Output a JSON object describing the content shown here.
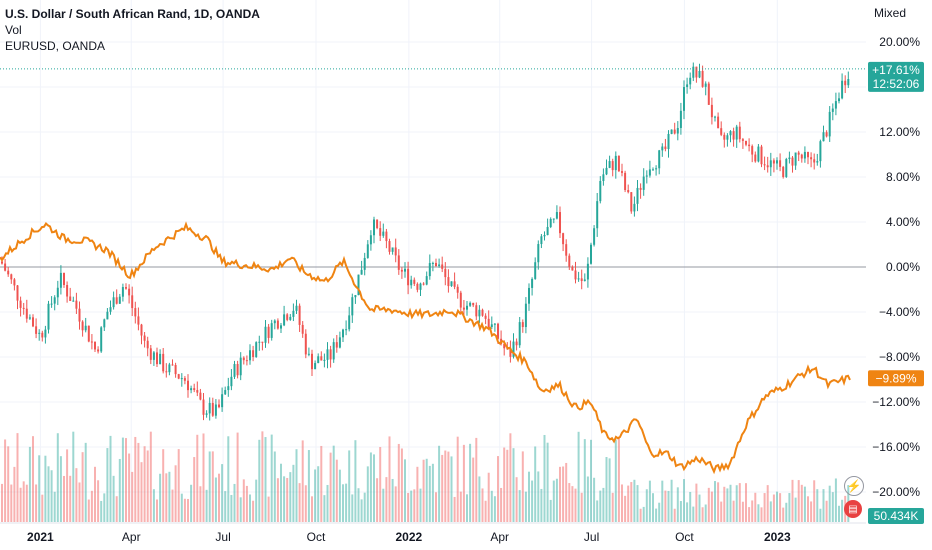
{
  "legend": {
    "symbol": "U.S. Dollar / South African Rand, 1D, OANDA",
    "volume": "Vol",
    "compare": "EURUSD, OANDA"
  },
  "scale_mode": "Mixed",
  "badges": {
    "main_percent": "+17.61%",
    "main_countdown": "12:52:06",
    "compare_percent": "−9.89%",
    "volume_value": "50.434K"
  },
  "icons": [
    "lightning-icon",
    "us-flag-icon"
  ],
  "chart_data": {
    "type": "line",
    "title": "U.S. Dollar / South African Rand, 1D, OANDA",
    "y_axis": {
      "scale": "percent",
      "ylim": [
        -22,
        22
      ],
      "ticks": [
        "20.00%",
        "16.00%",
        "12.00%",
        "8.00%",
        "4.00%",
        "0.00%",
        "−4.00%",
        "−8.00%",
        "−12.00%",
        "−16.00%",
        "−20.00%"
      ],
      "tick_values": [
        20,
        16,
        12,
        8,
        4,
        0,
        -4,
        -8,
        -12,
        -16,
        -20
      ]
    },
    "x_axis": {
      "ticks": [
        "2021",
        "Apr",
        "Jul",
        "Oct",
        "2022",
        "Apr",
        "Jul",
        "Oct",
        "2023"
      ],
      "tick_dates": [
        "2021-01",
        "2021-04",
        "2021-07",
        "2021-10",
        "2022-01",
        "2022-04",
        "2022-07",
        "2022-10",
        "2023-01"
      ],
      "range": [
        "2020-11-22",
        "2023-03-14"
      ]
    },
    "grid": true,
    "series": [
      {
        "name": "U.S. Dollar / South African Rand, 1D, OANDA",
        "kind": "candlestick",
        "up_color": "#26a69a",
        "down_color": "#ef5350",
        "x": [
          "2020-11-23",
          "2020-12-15",
          "2021-01-01",
          "2021-01-20",
          "2021-02-05",
          "2021-02-25",
          "2021-03-08",
          "2021-03-25",
          "2021-04-15",
          "2021-05-05",
          "2021-05-25",
          "2021-06-10",
          "2021-06-25",
          "2021-07-10",
          "2021-07-28",
          "2021-08-20",
          "2021-09-10",
          "2021-09-25",
          "2021-10-15",
          "2021-11-01",
          "2021-11-15",
          "2021-11-25",
          "2021-12-10",
          "2021-12-25",
          "2022-01-10",
          "2022-01-28",
          "2022-02-15",
          "2022-03-01",
          "2022-03-15",
          "2022-04-01",
          "2022-04-10",
          "2022-04-25",
          "2022-05-12",
          "2022-05-28",
          "2022-06-12",
          "2022-06-25",
          "2022-07-10",
          "2022-07-25",
          "2022-08-10",
          "2022-08-25",
          "2022-09-10",
          "2022-09-25",
          "2022-10-05",
          "2022-10-20",
          "2022-11-05",
          "2022-11-20",
          "2022-12-05",
          "2022-12-20",
          "2023-01-05",
          "2023-01-20",
          "2023-02-05",
          "2023-02-20",
          "2023-03-05",
          "2023-03-13"
        ],
        "y": [
          0.5,
          -3.5,
          -6.2,
          -1.0,
          -3.5,
          -7.5,
          -4.0,
          -1.5,
          -7.0,
          -9.0,
          -10.0,
          -12.5,
          -13.0,
          -9.5,
          -7.5,
          -5.0,
          -3.5,
          -8.5,
          -8.0,
          -4.5,
          0.0,
          3.8,
          2.0,
          -0.5,
          -1.5,
          0.5,
          -2.5,
          -3.5,
          -4.0,
          -6.5,
          -8.0,
          -4.5,
          2.5,
          4.2,
          -0.5,
          -1.5,
          8.0,
          9.5,
          5.0,
          9.0,
          10.0,
          13.0,
          17.5,
          16.5,
          11.0,
          12.0,
          10.5,
          9.5,
          8.5,
          10.0,
          9.0,
          12.5,
          16.0,
          17.61
        ]
      },
      {
        "name": "EURUSD, OANDA",
        "kind": "line",
        "color": "#ef8412",
        "x": [
          "2020-11-23",
          "2020-12-20",
          "2021-01-06",
          "2021-01-25",
          "2021-02-15",
          "2021-03-08",
          "2021-03-31",
          "2021-04-25",
          "2021-05-25",
          "2021-06-15",
          "2021-06-30",
          "2021-07-20",
          "2021-08-20",
          "2021-09-05",
          "2021-09-20",
          "2021-10-10",
          "2021-10-28",
          "2021-11-15",
          "2021-11-24",
          "2021-12-15",
          "2022-01-05",
          "2022-01-25",
          "2022-02-10",
          "2022-02-28",
          "2022-03-20",
          "2022-04-10",
          "2022-04-28",
          "2022-05-12",
          "2022-05-30",
          "2022-06-15",
          "2022-06-30",
          "2022-07-14",
          "2022-07-28",
          "2022-08-15",
          "2022-08-28",
          "2022-09-15",
          "2022-09-27",
          "2022-10-15",
          "2022-11-01",
          "2022-11-15",
          "2022-12-01",
          "2022-12-20",
          "2023-01-10",
          "2023-01-26",
          "2023-02-06",
          "2023-02-20",
          "2023-03-13"
        ],
        "y": [
          0.8,
          2.8,
          3.8,
          2.5,
          2.3,
          1.5,
          -0.8,
          1.8,
          3.5,
          2.5,
          0.5,
          0.2,
          -0.2,
          0.8,
          -0.5,
          -1.3,
          0.5,
          -2.5,
          -3.8,
          -3.8,
          -4.2,
          -4.2,
          -3.8,
          -4.6,
          -5.5,
          -7.3,
          -8.5,
          -11.0,
          -10.5,
          -12.5,
          -12.0,
          -15.0,
          -15.3,
          -13.5,
          -16.5,
          -16.6,
          -17.8,
          -17.0,
          -18.0,
          -17.5,
          -14.0,
          -11.5,
          -10.5,
          -9.5,
          -9.0,
          -10.5,
          -9.89
        ]
      },
      {
        "name": "Vol",
        "kind": "volume",
        "up_color": "#26a69a",
        "down_color": "#ef5350",
        "last_value": "50.434K"
      }
    ]
  }
}
